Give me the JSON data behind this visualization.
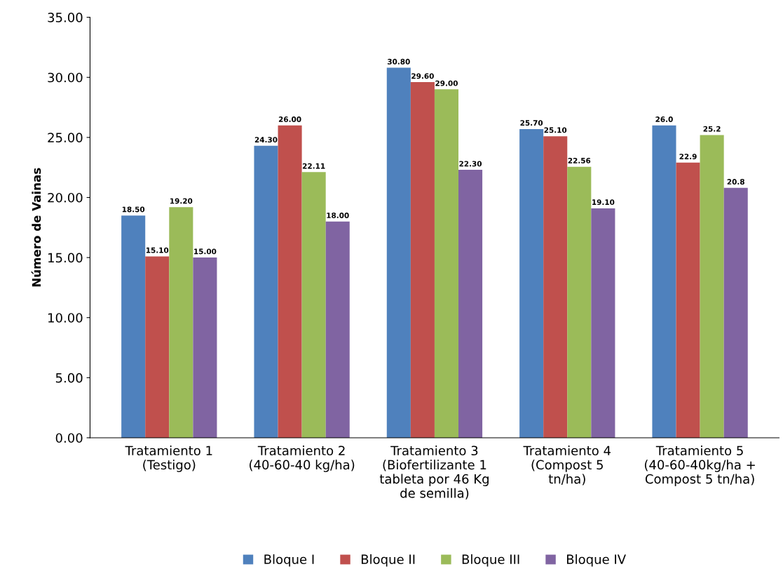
{
  "chart_data": {
    "type": "bar",
    "ylabel": "Número de Vainas",
    "categories": [
      "Tratamiento 1\n(Testigo)",
      "Tratamiento 2\n(40-60-40 kg/ha)",
      "Tratamiento 3\n(Biofertilizante 1\ntableta por 46 Kg\nde semilla)",
      "Tratamiento 4\n(Compost 5\ntn/ha)",
      "Tratamiento 5\n(40-60-40kg/ha +\nCompost 5 tn/ha)"
    ],
    "series": [
      {
        "name": "Bloque I",
        "color": "#4f81bd",
        "values": [
          18.5,
          24.3,
          30.8,
          25.7,
          26.0
        ],
        "value_labels": [
          "18.50",
          "24.30",
          "30.80",
          "25.70",
          "26.0"
        ]
      },
      {
        "name": "Bloque II",
        "color": "#c0504d",
        "values": [
          15.1,
          26.0,
          29.6,
          25.1,
          22.9
        ],
        "value_labels": [
          "15.10",
          "26.00",
          "29.60",
          "25.10",
          "22.9"
        ]
      },
      {
        "name": "Bloque III",
        "color": "#9bbb59",
        "values": [
          19.2,
          22.11,
          29.0,
          22.56,
          25.2
        ],
        "value_labels": [
          "19.20",
          "22.11",
          "29.00",
          "22.56",
          "25.2"
        ]
      },
      {
        "name": "Bloque IV",
        "color": "#8064a2",
        "values": [
          15.0,
          18.0,
          22.3,
          19.1,
          20.8
        ],
        "value_labels": [
          "15.00",
          "18.00",
          "22.30",
          "19.10",
          "20.8"
        ]
      }
    ],
    "ylim": [
      0,
      35
    ],
    "yticks": [
      {
        "value": 0,
        "label": "0.00"
      },
      {
        "value": 5,
        "label": "5.00"
      },
      {
        "value": 10,
        "label": "10.00"
      },
      {
        "value": 15,
        "label": "15.00"
      },
      {
        "value": 20,
        "label": "20.00"
      },
      {
        "value": 25,
        "label": "25.00"
      },
      {
        "value": 30,
        "label": "30.00"
      },
      {
        "value": 35,
        "label": "35.00"
      }
    ],
    "grid": false,
    "legend": "bottom"
  }
}
